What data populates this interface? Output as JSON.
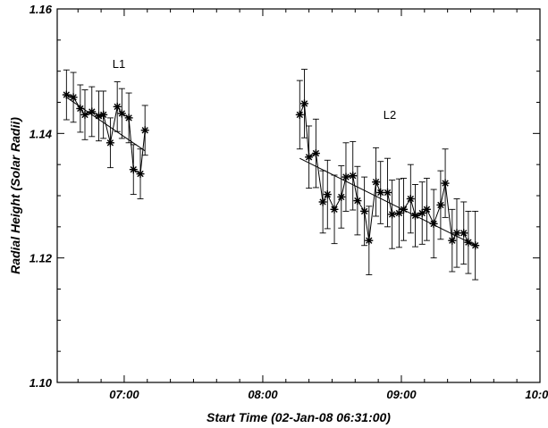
{
  "chart_data": {
    "type": "scatter",
    "xlabel": "Start Time (02-Jan-08 06:31:00)",
    "ylabel": "Radial Height (Solar Radii)",
    "xlim": [
      "06:31",
      "10:00"
    ],
    "ylim": [
      1.1,
      1.16
    ],
    "x_ticks": [
      "07:00",
      "08:00",
      "09:00",
      "10:00"
    ],
    "y_ticks": [
      "1.10",
      "1.12",
      "1.14",
      "1.16"
    ],
    "grid": false,
    "marker": "asterisk",
    "series": [
      {
        "name": "L1",
        "x": [
          "06:35",
          "06:38",
          "06:41",
          "06:43",
          "06:46",
          "06:49",
          "06:51",
          "06:54",
          "06:57",
          "06:59",
          "07:02",
          "07:04",
          "07:07",
          "07:09"
        ],
        "y": [
          1.1462,
          1.1458,
          1.144,
          1.143,
          1.1435,
          1.1428,
          1.143,
          1.1385,
          1.1443,
          1.1432,
          1.1425,
          1.1342,
          1.1335,
          1.1405
        ],
        "err": [
          0.004,
          0.004,
          0.0038,
          0.004,
          0.004,
          0.004,
          0.0038,
          0.004,
          0.004,
          0.004,
          0.004,
          0.004,
          0.004,
          0.004
        ],
        "fit": [
          [
            "06:35",
            1.1458
          ],
          [
            "07:09",
            1.1372
          ]
        ]
      },
      {
        "name": "L2",
        "x": [
          "08:16",
          "08:18",
          "08:20",
          "08:23",
          "08:26",
          "08:28",
          "08:31",
          "08:34",
          "08:36",
          "08:39",
          "08:41",
          "08:44",
          "08:46",
          "08:49",
          "08:51",
          "08:54",
          "08:56",
          "08:59",
          "09:01",
          "09:04",
          "09:06",
          "09:09",
          "09:11",
          "09:14",
          "09:17",
          "09:19",
          "09:22",
          "09:24",
          "09:27",
          "09:29",
          "09:32"
        ],
        "y": [
          1.143,
          1.1448,
          1.1362,
          1.1368,
          1.129,
          1.1302,
          1.1278,
          1.1298,
          1.133,
          1.1332,
          1.1292,
          1.1275,
          1.1228,
          1.1322,
          1.1305,
          1.1305,
          1.127,
          1.1272,
          1.1278,
          1.1295,
          1.1268,
          1.1272,
          1.1278,
          1.1255,
          1.1285,
          1.132,
          1.1228,
          1.124,
          1.124,
          1.1225,
          1.122
        ],
        "err": [
          0.0055,
          0.0055,
          0.005,
          0.0055,
          0.005,
          0.0055,
          0.0055,
          0.005,
          0.0055,
          0.0055,
          0.0055,
          0.0055,
          0.0055,
          0.0055,
          0.005,
          0.0055,
          0.0055,
          0.0055,
          0.005,
          0.0055,
          0.005,
          0.005,
          0.005,
          0.0055,
          0.0055,
          0.0055,
          0.005,
          0.0055,
          0.005,
          0.005,
          0.0055
        ],
        "fit": [
          [
            "08:16",
            1.136
          ],
          [
            "09:32",
            1.122
          ]
        ]
      }
    ]
  }
}
